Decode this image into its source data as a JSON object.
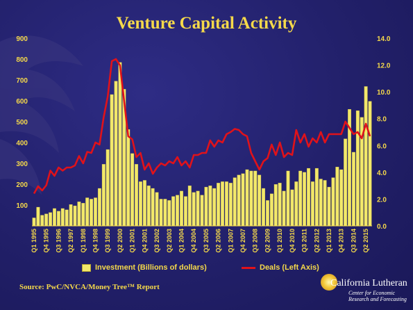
{
  "chart_data": {
    "type": "bar",
    "title": "Venture Capital Activity",
    "source": "Source: PwC/NVCA/Money Tree™ Report",
    "logo": {
      "name": "California Lutheran",
      "subtitle_line1": "Center for Economic",
      "subtitle_line2": "Research and Forecasting"
    },
    "y_left": {
      "min": 0,
      "max": 900,
      "ticks": [
        0,
        100,
        200,
        300,
        400,
        500,
        600,
        700,
        800,
        900
      ],
      "tick_labels": [
        "0",
        "100",
        "200",
        "300",
        "400",
        "500",
        "600",
        "700",
        "800",
        "900"
      ]
    },
    "y_right": {
      "min": 0,
      "max": 14,
      "ticks": [
        0,
        2,
        4,
        6,
        8,
        10,
        12,
        14
      ],
      "tick_labels": [
        "0.0",
        "2.0",
        "4.0",
        "6.0",
        "8.0",
        "10.0",
        "12.0",
        "14.0"
      ]
    },
    "x_tick_labels": [
      "Q1 1995",
      "Q4 1995",
      "Q3 1996",
      "Q2 1997",
      "Q1 1998",
      "Q4 1998",
      "Q3 1999",
      "Q2 2000",
      "Q1 2001",
      "Q4 2001",
      "Q3 2002",
      "Q2 2003",
      "Q1 2004",
      "Q4 2004",
      "Q3 2005",
      "Q2 2006",
      "Q1 2007",
      "Q4 2007",
      "Q3 2008",
      "Q2 2009",
      "Q1 2010",
      "Q4 2010",
      "Q3 2011",
      "Q2 2012",
      "Q1 2013",
      "Q4 2013",
      "Q3 2014",
      "Q2 2015"
    ],
    "x": [
      "Q1 1995",
      "Q2 1995",
      "Q3 1995",
      "Q4 1995",
      "Q1 1996",
      "Q2 1996",
      "Q3 1996",
      "Q4 1996",
      "Q1 1997",
      "Q2 1997",
      "Q3 1997",
      "Q4 1997",
      "Q1 1998",
      "Q2 1998",
      "Q3 1998",
      "Q4 1998",
      "Q1 1999",
      "Q2 1999",
      "Q3 1999",
      "Q4 1999",
      "Q1 2000",
      "Q2 2000",
      "Q3 2000",
      "Q4 2000",
      "Q1 2001",
      "Q2 2001",
      "Q3 2001",
      "Q4 2001",
      "Q1 2002",
      "Q2 2002",
      "Q3 2002",
      "Q4 2002",
      "Q1 2003",
      "Q2 2003",
      "Q3 2003",
      "Q4 2003",
      "Q1 2004",
      "Q2 2004",
      "Q3 2004",
      "Q4 2004",
      "Q1 2005",
      "Q2 2005",
      "Q3 2005",
      "Q4 2005",
      "Q1 2006",
      "Q2 2006",
      "Q3 2006",
      "Q4 2006",
      "Q1 2007",
      "Q2 2007",
      "Q3 2007",
      "Q4 2007",
      "Q1 2008",
      "Q2 2008",
      "Q3 2008",
      "Q4 2008",
      "Q1 2009",
      "Q2 2009",
      "Q3 2009",
      "Q4 2009",
      "Q1 2010",
      "Q2 2010",
      "Q3 2010",
      "Q4 2010",
      "Q1 2011",
      "Q2 2011",
      "Q3 2011",
      "Q4 2011",
      "Q1 2012",
      "Q2 2012",
      "Q3 2012",
      "Q4 2012",
      "Q1 2013",
      "Q2 2013",
      "Q3 2013",
      "Q4 2013",
      "Q1 2014",
      "Q2 2014",
      "Q3 2014",
      "Q4 2014",
      "Q1 2015",
      "Q2 2015",
      "Q3 2015"
    ],
    "series": [
      {
        "name": "Investment (Billions of dollars)",
        "type": "bar",
        "axis": "right",
        "color": "#f2e86a",
        "values": [
          0.6,
          1.4,
          0.8,
          0.9,
          1.0,
          1.3,
          1.1,
          1.3,
          1.2,
          1.6,
          1.5,
          1.8,
          1.7,
          2.1,
          2.0,
          2.1,
          2.8,
          4.6,
          5.7,
          9.8,
          10.8,
          12.2,
          10.2,
          7.2,
          5.4,
          4.6,
          3.3,
          3.4,
          3.0,
          2.8,
          2.5,
          2.0,
          2.0,
          1.9,
          2.2,
          2.3,
          2.6,
          2.2,
          3.0,
          2.5,
          2.6,
          2.3,
          2.9,
          3.0,
          2.8,
          3.2,
          3.3,
          3.3,
          3.2,
          3.6,
          3.8,
          3.9,
          4.2,
          4.1,
          4.1,
          3.8,
          2.8,
          1.9,
          2.4,
          3.1,
          3.2,
          2.6,
          4.1,
          2.7,
          3.3,
          4.1,
          4.0,
          4.3,
          3.3,
          4.3,
          3.5,
          3.4,
          2.9,
          3.6,
          4.4,
          4.2,
          6.5,
          8.7,
          5.5,
          8.6,
          8.1,
          10.4,
          9.3
        ]
      },
      {
        "name": "Deals (Left Axis)",
        "type": "line",
        "axis": "left",
        "color": "#e0121a",
        "values": [
          155,
          190,
          170,
          195,
          265,
          240,
          280,
          265,
          280,
          280,
          290,
          335,
          300,
          355,
          350,
          400,
          390,
          520,
          620,
          790,
          800,
          770,
          600,
          430,
          415,
          330,
          350,
          270,
          300,
          250,
          280,
          300,
          290,
          310,
          300,
          330,
          290,
          310,
          280,
          340,
          340,
          350,
          350,
          410,
          380,
          410,
          400,
          440,
          450,
          465,
          460,
          440,
          430,
          350,
          310,
          270,
          310,
          325,
          390,
          340,
          400,
          330,
          350,
          340,
          460,
          400,
          440,
          380,
          420,
          400,
          450,
          400,
          440,
          440,
          440,
          440,
          500,
          470,
          440,
          450,
          420,
          490,
          430
        ]
      }
    ],
    "legend": "bottom"
  }
}
